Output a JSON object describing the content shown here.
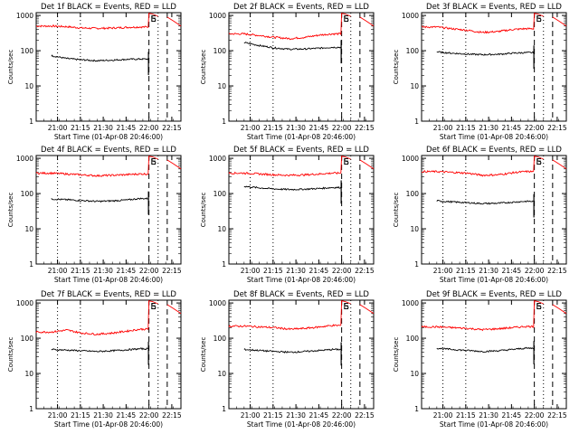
{
  "figure": {
    "panels": [
      {
        "title": "Det 1f BLACK = Events, RED = LLD",
        "s_marker": "S",
        "e_marker": "E",
        "red": [
          500,
          480,
          440,
          430,
          440,
          460,
          470
        ],
        "black": [
          72,
          60,
          55,
          52,
          54,
          57,
          58
        ]
      },
      {
        "title": "Det 2f BLACK = Events, RED = LLD",
        "s_marker": "S",
        "e_marker": "E",
        "red": [
          300,
          270,
          240,
          220,
          240,
          280,
          300
        ],
        "black": [
          170,
          140,
          120,
          110,
          112,
          118,
          125
        ]
      },
      {
        "title": "Det 3f BLACK = Events, RED = LLD",
        "s_marker": "S",
        "e_marker": "E",
        "red": [
          470,
          420,
          380,
          330,
          350,
          400,
          420
        ],
        "black": [
          92,
          85,
          80,
          77,
          79,
          85,
          88
        ]
      },
      {
        "title": "Det 4f BLACK = Events, RED = LLD",
        "s_marker": "S",
        "e_marker": "E",
        "red": [
          380,
          360,
          340,
          320,
          330,
          345,
          360
        ],
        "black": [
          70,
          67,
          63,
          60,
          62,
          66,
          72
        ]
      },
      {
        "title": "Det 5f BLACK = Events, RED = LLD",
        "s_marker": "S",
        "e_marker": "E",
        "red": [
          380,
          360,
          340,
          330,
          340,
          360,
          380
        ],
        "black": [
          160,
          145,
          135,
          130,
          133,
          140,
          148
        ]
      },
      {
        "title": "Det 6f BLACK = Events, RED = LLD",
        "s_marker": "S",
        "e_marker": "E",
        "red": [
          420,
          400,
          380,
          330,
          340,
          390,
          420
        ],
        "black": [
          62,
          58,
          55,
          52,
          53,
          57,
          60
        ]
      },
      {
        "title": "Det 7f BLACK = Events, RED = LLD",
        "s_marker": "S",
        "e_marker": "E",
        "red": [
          150,
          170,
          140,
          130,
          140,
          160,
          180
        ],
        "black": [
          48,
          46,
          44,
          42,
          44,
          47,
          50
        ]
      },
      {
        "title": "Det 8f BLACK = Events, RED = LLD",
        "s_marker": "S",
        "e_marker": "E",
        "red": [
          220,
          210,
          200,
          180,
          190,
          210,
          230
        ],
        "black": [
          48,
          45,
          42,
          40,
          42,
          45,
          48
        ]
      },
      {
        "title": "Det 9f BLACK = Events, RED = LLD",
        "s_marker": "S",
        "e_marker": "E",
        "red": [
          210,
          200,
          190,
          175,
          185,
          200,
          215
        ],
        "black": [
          52,
          48,
          45,
          42,
          44,
          48,
          52
        ]
      }
    ],
    "ylabel": "Counts/sec",
    "xlabel": "Start Time (01-Apr-08 20:46:00)",
    "xtick_labels": [
      "21:00",
      "21:15",
      "21:30",
      "21:45",
      "22:00",
      "22:15"
    ],
    "ytick_labels": [
      "1",
      "10",
      "100",
      "1000"
    ],
    "colors": {
      "lld": "#ff0000",
      "events": "#000000",
      "axes": "#000000"
    }
  },
  "chart_data": {
    "type": "line",
    "layout": "3x3 grid",
    "x_unit": "minutes after 20:46:00 on 01-Apr-08",
    "xlim": [
      0,
      95
    ],
    "ylim": [
      1,
      1200
    ],
    "yscale": "log",
    "xtick_values": [
      14,
      29,
      44,
      59,
      74,
      89
    ],
    "x": [
      10,
      20,
      30,
      40,
      50,
      60,
      68
    ],
    "markers": {
      "S": 74,
      "E_dotted": 80,
      "E_dashed": 86,
      "left_dotted": 14,
      "mid_dotted": 29
    },
    "series_note": "red = LLD, black = Events",
    "panels_ref": "figure.panels"
  }
}
